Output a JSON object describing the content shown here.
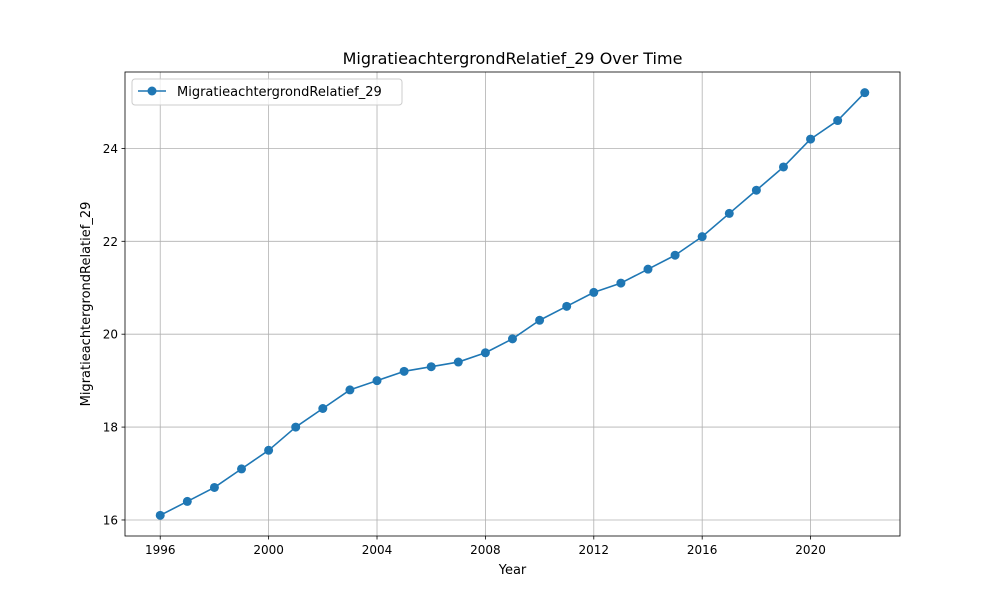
{
  "chart_data": {
    "type": "line",
    "title": "MigratieachtergrondRelatief_29 Over Time",
    "xlabel": "Year",
    "ylabel": "MigratieachtergrondRelatief_29",
    "x": [
      1996,
      1997,
      1998,
      1999,
      2000,
      2001,
      2002,
      2003,
      2004,
      2005,
      2006,
      2007,
      2008,
      2009,
      2010,
      2011,
      2012,
      2013,
      2014,
      2015,
      2016,
      2017,
      2018,
      2019,
      2020,
      2021,
      2022
    ],
    "series": [
      {
        "name": "MigratieachtergrondRelatief_29",
        "values": [
          16.1,
          16.4,
          16.7,
          17.1,
          17.5,
          18.0,
          18.4,
          18.8,
          19.0,
          19.2,
          19.3,
          19.4,
          19.6,
          19.9,
          20.3,
          20.6,
          20.9,
          21.1,
          21.4,
          21.7,
          22.1,
          22.6,
          23.1,
          23.6,
          24.2,
          24.6,
          25.2
        ],
        "color": "#1f77b4"
      }
    ],
    "xticks": [
      "1996",
      "2000",
      "2004",
      "2008",
      "2012",
      "2016",
      "2020"
    ],
    "yticks": [
      "16",
      "18",
      "20",
      "22",
      "24"
    ],
    "xlim": [
      1994.7,
      2023.3
    ],
    "ylim": [
      15.655,
      25.645
    ],
    "grid": true,
    "legend_position": "top-left"
  }
}
